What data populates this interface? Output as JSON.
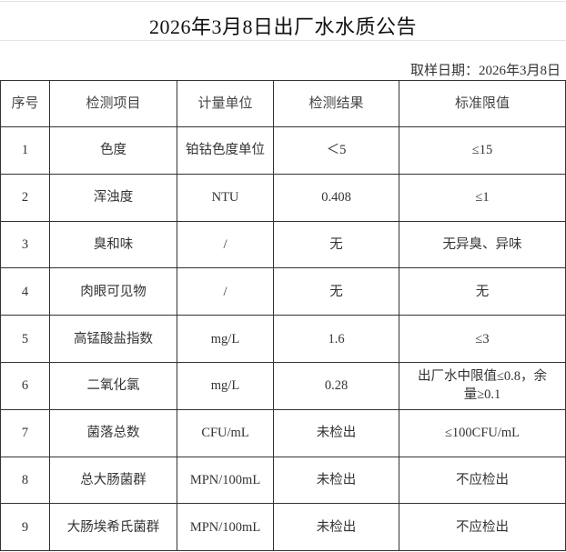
{
  "title": "2026年3月8日出厂水水质公告",
  "sampling_date": "取样日期：2026年3月8日",
  "table": {
    "headers": [
      "序号",
      "检测项目",
      "计量单位",
      "检测结果",
      "标准限值"
    ],
    "rows": [
      [
        "1",
        "色度",
        "铂钴色度单位",
        "＜5",
        "≤15"
      ],
      [
        "2",
        "浑浊度",
        "NTU",
        "0.408",
        "≤1"
      ],
      [
        "3",
        "臭和味",
        "/",
        "无",
        "无异臭、异味"
      ],
      [
        "4",
        "肉眼可见物",
        "/",
        "无",
        "无"
      ],
      [
        "5",
        "高锰酸盐指数",
        "mg/L",
        "1.6",
        "≤3"
      ],
      [
        "6",
        "二氧化氯",
        "mg/L",
        "0.28",
        "出厂水中限值≤0.8，余量≥0.1"
      ],
      [
        "7",
        "菌落总数",
        "CFU/mL",
        "未检出",
        "≤100CFU/mL"
      ],
      [
        "8",
        "总大肠菌群",
        "MPN/100mL",
        "未检出",
        "不应检出"
      ],
      [
        "9",
        "大肠埃希氏菌群",
        "MPN/100mL",
        "未检出",
        "不应检出"
      ]
    ]
  }
}
